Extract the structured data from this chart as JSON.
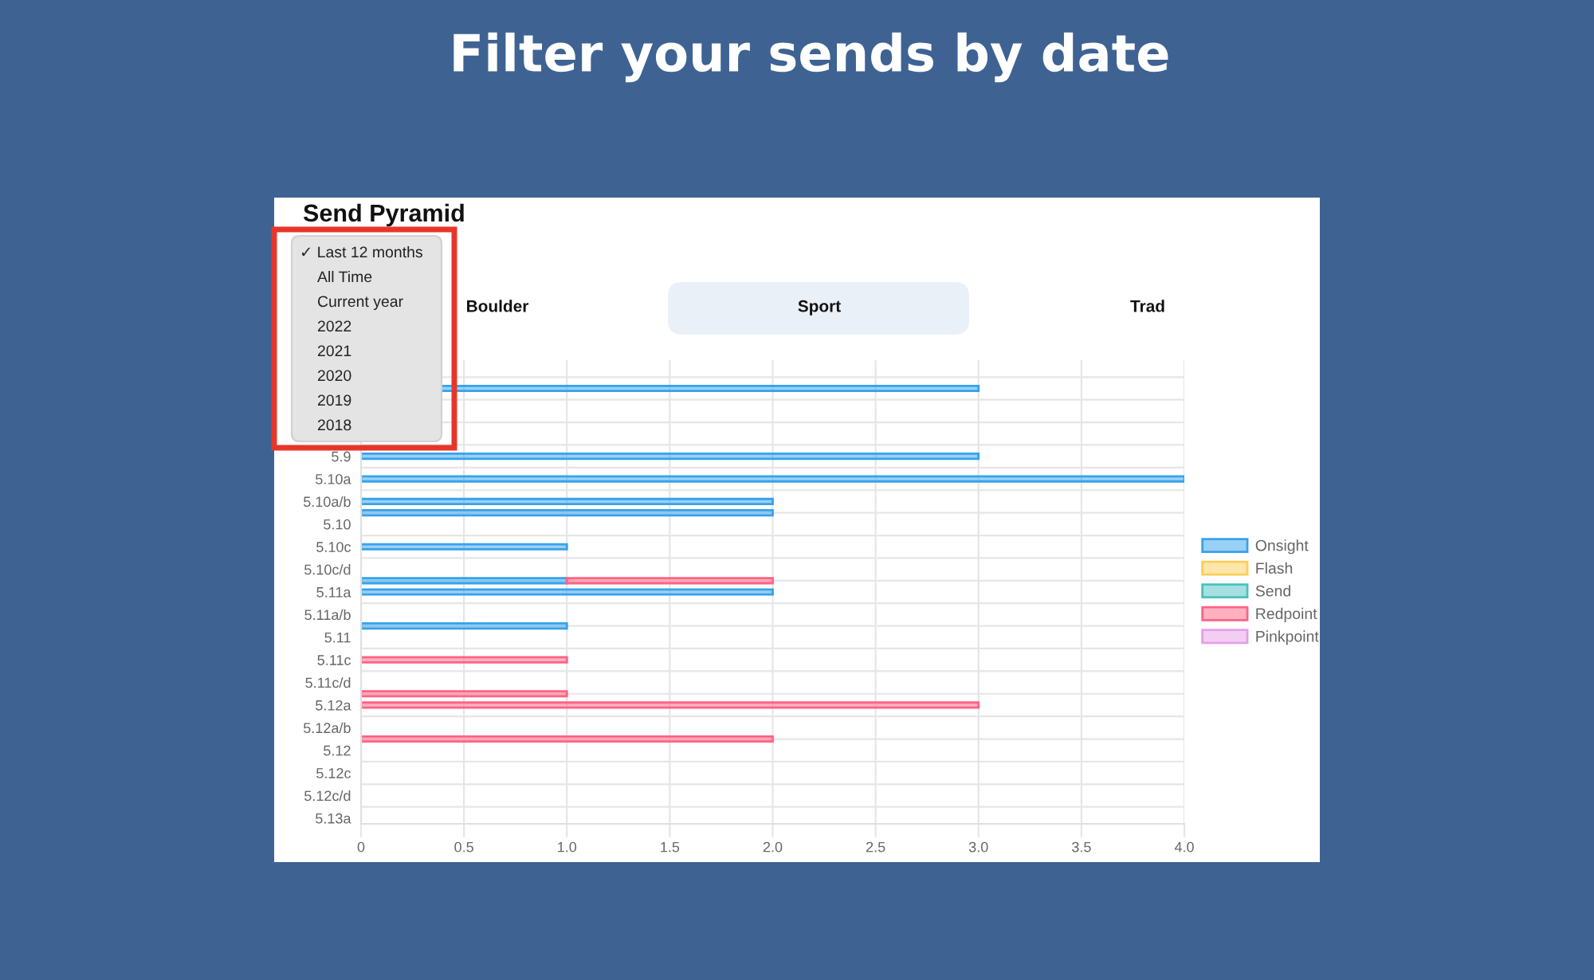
{
  "chart_data": {
    "type": "bar",
    "orientation": "horizontal",
    "stacked": true,
    "title": "Filter your sends by date",
    "subtitle": "Send Pyramid",
    "annotations": [
      "Boulder",
      "Sport",
      "Trad",
      "✓ Last 12 months",
      "All Time",
      "Current year",
      "2022",
      "2021",
      "2020",
      "2019",
      "2018"
    ],
    "categories": [
      null,
      null,
      null,
      null,
      null,
      null,
      null,
      null,
      "5.9",
      null,
      "5.10a",
      null,
      "5.10a/b",
      null,
      "5.10",
      null,
      "5.10c",
      null,
      "5.10c/d",
      null,
      "5.11a",
      null,
      "5.11a/b",
      null,
      "5.11",
      null,
      "5.11c",
      null,
      "5.11c/d",
      null,
      "5.12a",
      null,
      "5.12a/b",
      null,
      "5.12",
      null,
      "5.12c",
      null,
      "5.12c/d",
      null,
      "5.13a"
    ],
    "series": [
      {
        "name": "Onsight",
        "color": "#36a2eb",
        "values": [
          null,
          null,
          3,
          null,
          null,
          null,
          null,
          null,
          3,
          null,
          4,
          null,
          2,
          2,
          null,
          null,
          1,
          null,
          null,
          1,
          2,
          null,
          null,
          1,
          null,
          null,
          null,
          null,
          null,
          null,
          null,
          null,
          null,
          null,
          null,
          null,
          null,
          null,
          null,
          null,
          null
        ]
      },
      {
        "name": "Flash",
        "color": "#ffcd56",
        "values": [
          null,
          null,
          null,
          null,
          null,
          null,
          null,
          null,
          null,
          null,
          null,
          null,
          null,
          null,
          null,
          null,
          null,
          null,
          null,
          null,
          null,
          null,
          null,
          null,
          null,
          null,
          null,
          null,
          null,
          null,
          null,
          null,
          null,
          null,
          null,
          null,
          null,
          null,
          null,
          null,
          null
        ]
      },
      {
        "name": "Send",
        "color": "#4bc0c0",
        "values": [
          null,
          null,
          null,
          null,
          null,
          null,
          null,
          null,
          null,
          null,
          null,
          null,
          null,
          null,
          null,
          null,
          null,
          null,
          null,
          null,
          null,
          null,
          null,
          null,
          null,
          null,
          null,
          null,
          null,
          null,
          null,
          null,
          null,
          null,
          null,
          null,
          null,
          null,
          null,
          null,
          null
        ]
      },
      {
        "name": "Redpoint",
        "color": "#ff6384",
        "values": [
          null,
          null,
          null,
          null,
          null,
          null,
          null,
          null,
          null,
          null,
          null,
          null,
          null,
          null,
          null,
          null,
          null,
          null,
          null,
          1,
          null,
          null,
          null,
          null,
          null,
          null,
          1,
          null,
          null,
          1,
          3,
          null,
          null,
          2,
          null,
          null,
          null,
          null,
          null,
          null,
          null
        ]
      },
      {
        "name": "Pinkpoint",
        "color": "#e59de8",
        "values": [
          null,
          null,
          null,
          null,
          null,
          null,
          null,
          null,
          null,
          null,
          null,
          null,
          null,
          null,
          null,
          null,
          null,
          null,
          null,
          null,
          null,
          null,
          null,
          null,
          null,
          null,
          null,
          null,
          null,
          null,
          null,
          null,
          null,
          null,
          null,
          null,
          null,
          null,
          null,
          null,
          null
        ]
      }
    ],
    "xlim": [
      0,
      4
    ],
    "xticks": [
      0,
      0.5,
      {
        "value": 1,
        "label": "1.0"
      },
      1.5,
      {
        "value": 2,
        "label": "2.0"
      },
      2.5,
      {
        "value": 3,
        "label": "3.0"
      },
      3.5,
      {
        "value": 4,
        "label": "4.0"
      }
    ],
    "grid": true,
    "legend": "right"
  }
}
